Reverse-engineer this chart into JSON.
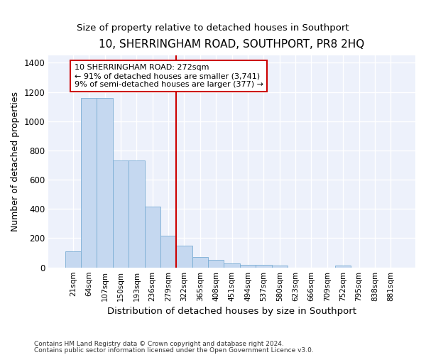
{
  "title": "10, SHERRINGHAM ROAD, SOUTHPORT, PR8 2HQ",
  "subtitle": "Size of property relative to detached houses in Southport",
  "xlabel": "Distribution of detached houses by size in Southport",
  "ylabel": "Number of detached properties",
  "bar_color": "#c5d8f0",
  "bar_edge_color": "#7aadd4",
  "vline_color": "#cc0000",
  "annotation_text": "10 SHERRINGHAM ROAD: 272sqm\n← 91% of detached houses are smaller (3,741)\n9% of semi-detached houses are larger (377) →",
  "annotation_box_edgecolor": "#cc0000",
  "categories": [
    "21sqm",
    "64sqm",
    "107sqm",
    "150sqm",
    "193sqm",
    "236sqm",
    "279sqm",
    "322sqm",
    "365sqm",
    "408sqm",
    "451sqm",
    "494sqm",
    "537sqm",
    "580sqm",
    "623sqm",
    "666sqm",
    "709sqm",
    "752sqm",
    "795sqm",
    "838sqm",
    "881sqm"
  ],
  "values": [
    108,
    1160,
    1160,
    730,
    730,
    418,
    218,
    148,
    72,
    50,
    30,
    18,
    18,
    15,
    0,
    0,
    0,
    15,
    0,
    0,
    0
  ],
  "ylim": [
    0,
    1450
  ],
  "yticks": [
    0,
    200,
    400,
    600,
    800,
    1000,
    1200,
    1400
  ],
  "vline_idx": 6,
  "footer1": "Contains HM Land Registry data © Crown copyright and database right 2024.",
  "footer2": "Contains public sector information licensed under the Open Government Licence v3.0.",
  "bg_color": "#edf1fb"
}
